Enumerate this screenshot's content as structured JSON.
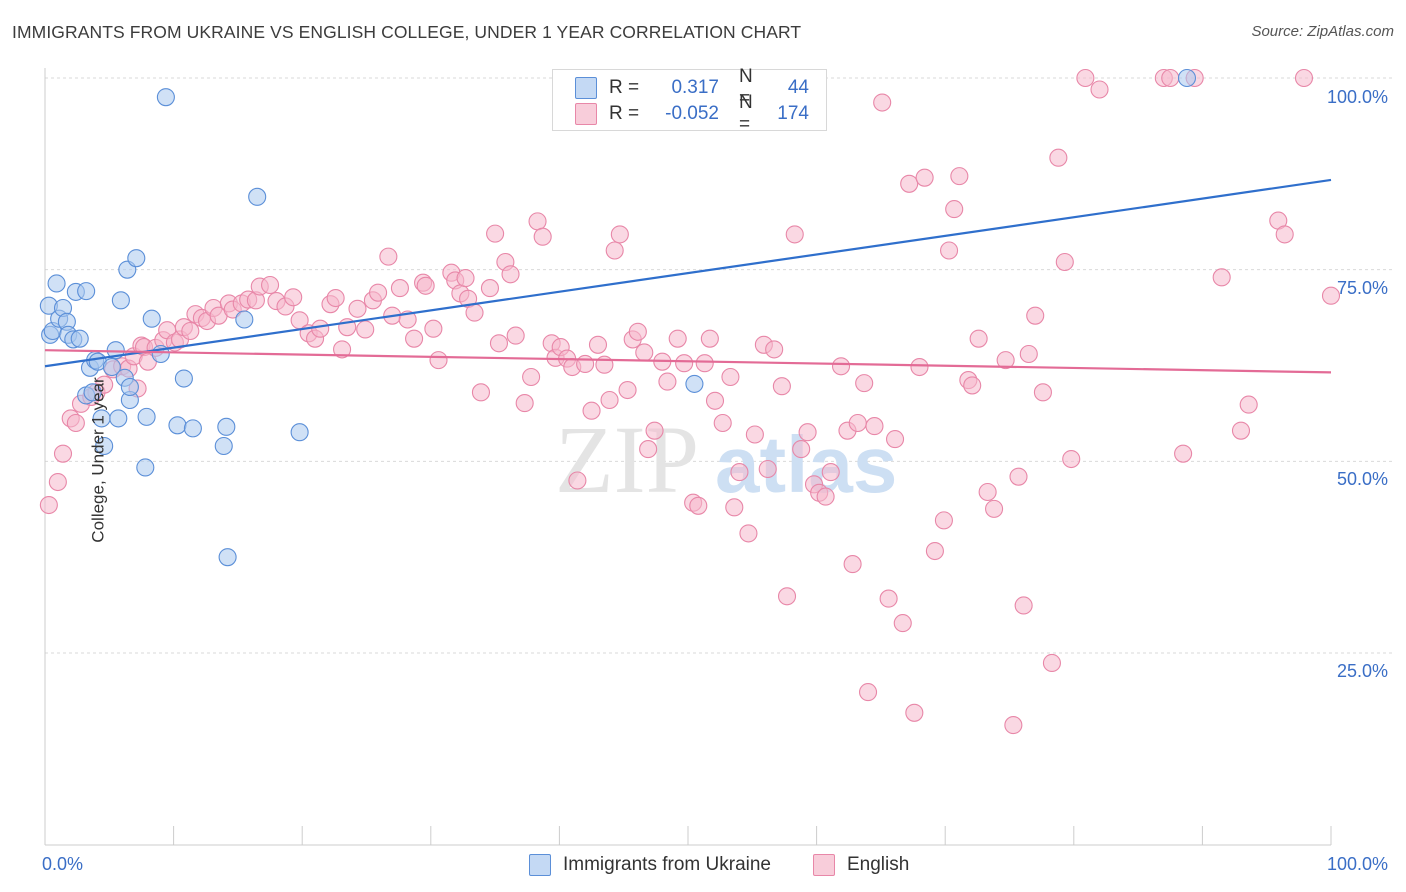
{
  "header": {
    "title": "IMMIGRANTS FROM UKRAINE VS ENGLISH COLLEGE, UNDER 1 YEAR CORRELATION CHART",
    "source": "Source: ZipAtlas.com"
  },
  "legend": {
    "series1": {
      "r_label": "R =",
      "r_value": "0.317",
      "n_label": "N =",
      "n_value": "44"
    },
    "series2": {
      "r_label": "R =",
      "r_value": "-0.052",
      "n_label": "N =",
      "n_value": "174"
    }
  },
  "watermark": {
    "zip": "ZIP",
    "atlas": "atlas"
  },
  "colors": {
    "blue_fill": "#aac8ee",
    "blue_stroke": "#5b8fd8",
    "blue_line": "#2f6fcc",
    "pink_fill": "#f5b8cc",
    "pink_stroke": "#e887a8",
    "pink_line": "#e36b96",
    "grid": "#d9d9d9",
    "axis_label": "#3a6ec6"
  },
  "chart_data": {
    "type": "scatter",
    "title": "IMMIGRANTS FROM UKRAINE VS ENGLISH COLLEGE, UNDER 1 YEAR CORRELATION CHART",
    "xlabel": "",
    "ylabel": "College, Under 1 year",
    "xlim": [
      0,
      100
    ],
    "ylim": [
      0,
      102
    ],
    "x_tick_labels": [
      "0.0%",
      "100.0%"
    ],
    "y_ticks": [
      25,
      50,
      75,
      100
    ],
    "y_tick_labels": [
      "25.0%",
      "50.0%",
      "75.0%",
      "100.0%"
    ],
    "legend_position": "top-center",
    "series": [
      {
        "name": "Immigrants from Ukraine",
        "color": "blue",
        "trend": {
          "x0": 0,
          "y0": 62.4,
          "x1": 100,
          "y1": 86.7
        },
        "points": [
          [
            0.3,
            70.3
          ],
          [
            0.4,
            66.5
          ],
          [
            0.6,
            67.0
          ],
          [
            0.9,
            73.2
          ],
          [
            1.1,
            68.6
          ],
          [
            1.4,
            70.0
          ],
          [
            1.7,
            68.2
          ],
          [
            1.8,
            66.5
          ],
          [
            2.2,
            65.9
          ],
          [
            2.4,
            72.1
          ],
          [
            2.7,
            66.0
          ],
          [
            3.2,
            72.2
          ],
          [
            3.5,
            62.2
          ],
          [
            3.2,
            58.6
          ],
          [
            3.7,
            59.0
          ],
          [
            3.9,
            63.2
          ],
          [
            4.1,
            63.0
          ],
          [
            4.4,
            55.6
          ],
          [
            4.6,
            52.0
          ],
          [
            5.2,
            62.3
          ],
          [
            5.5,
            64.5
          ],
          [
            5.7,
            55.6
          ],
          [
            5.9,
            71.0
          ],
          [
            6.2,
            60.9
          ],
          [
            6.4,
            75.0
          ],
          [
            6.6,
            58.0
          ],
          [
            6.6,
            59.7
          ],
          [
            7.1,
            76.5
          ],
          [
            7.8,
            49.2
          ],
          [
            7.9,
            55.8
          ],
          [
            8.3,
            68.6
          ],
          [
            9.0,
            64.0
          ],
          [
            9.4,
            97.5
          ],
          [
            10.3,
            54.7
          ],
          [
            10.8,
            60.8
          ],
          [
            11.5,
            54.3
          ],
          [
            13.9,
            52.0
          ],
          [
            14.1,
            54.5
          ],
          [
            14.2,
            37.5
          ],
          [
            15.5,
            68.5
          ],
          [
            16.5,
            84.5
          ],
          [
            19.8,
            53.8
          ],
          [
            50.5,
            60.1
          ],
          [
            88.8,
            100.0
          ]
        ]
      },
      {
        "name": "English",
        "color": "pink",
        "trend": {
          "x0": 0,
          "y0": 64.5,
          "x1": 100,
          "y1": 61.6
        },
        "points": [
          [
            0.3,
            44.3
          ],
          [
            1.0,
            47.3
          ],
          [
            1.4,
            51.0
          ],
          [
            2.0,
            55.6
          ],
          [
            2.4,
            55.0
          ],
          [
            2.8,
            57.5
          ],
          [
            3.6,
            58.4
          ],
          [
            4.0,
            59.0
          ],
          [
            4.6,
            60.0
          ],
          [
            5.3,
            62.0
          ],
          [
            6.0,
            62.4
          ],
          [
            6.5,
            62.1
          ],
          [
            6.9,
            63.7
          ],
          [
            7.2,
            59.5
          ],
          [
            7.5,
            65.1
          ],
          [
            7.7,
            64.9
          ],
          [
            8.0,
            63.0
          ],
          [
            8.6,
            64.8
          ],
          [
            9.2,
            65.8
          ],
          [
            9.5,
            67.1
          ],
          [
            10.1,
            65.5
          ],
          [
            10.5,
            65.9
          ],
          [
            10.8,
            67.5
          ],
          [
            11.3,
            67.0
          ],
          [
            11.7,
            69.2
          ],
          [
            12.2,
            68.7
          ],
          [
            12.6,
            68.3
          ],
          [
            13.1,
            70.0
          ],
          [
            13.5,
            69.0
          ],
          [
            14.3,
            70.6
          ],
          [
            14.6,
            69.8
          ],
          [
            15.3,
            70.6
          ],
          [
            15.8,
            71.1
          ],
          [
            16.4,
            71.0
          ],
          [
            16.7,
            72.8
          ],
          [
            17.5,
            73.0
          ],
          [
            18.0,
            70.9
          ],
          [
            18.7,
            70.2
          ],
          [
            19.3,
            71.4
          ],
          [
            19.8,
            68.4
          ],
          [
            20.5,
            66.7
          ],
          [
            21.0,
            66.0
          ],
          [
            21.4,
            67.3
          ],
          [
            22.2,
            70.5
          ],
          [
            22.6,
            71.3
          ],
          [
            23.1,
            64.6
          ],
          [
            23.5,
            67.5
          ],
          [
            24.3,
            69.9
          ],
          [
            24.9,
            67.2
          ],
          [
            25.5,
            71.0
          ],
          [
            25.9,
            72.0
          ],
          [
            26.7,
            76.7
          ],
          [
            27.0,
            69.0
          ],
          [
            27.6,
            72.6
          ],
          [
            28.2,
            68.5
          ],
          [
            28.7,
            66.0
          ],
          [
            29.4,
            73.3
          ],
          [
            29.6,
            72.9
          ],
          [
            30.2,
            67.3
          ],
          [
            30.6,
            63.2
          ],
          [
            31.6,
            74.6
          ],
          [
            31.9,
            73.6
          ],
          [
            32.3,
            71.9
          ],
          [
            32.7,
            73.9
          ],
          [
            32.9,
            71.2
          ],
          [
            33.4,
            69.4
          ],
          [
            33.9,
            59.0
          ],
          [
            34.6,
            72.6
          ],
          [
            35.0,
            79.7
          ],
          [
            35.3,
            65.4
          ],
          [
            35.8,
            76.0
          ],
          [
            36.2,
            74.4
          ],
          [
            36.6,
            66.4
          ],
          [
            37.3,
            57.6
          ],
          [
            37.8,
            61.0
          ],
          [
            38.3,
            81.3
          ],
          [
            38.7,
            79.3
          ],
          [
            39.4,
            65.4
          ],
          [
            39.7,
            63.5
          ],
          [
            40.1,
            64.9
          ],
          [
            40.6,
            63.4
          ],
          [
            41.0,
            62.3
          ],
          [
            41.4,
            47.5
          ],
          [
            42.0,
            62.7
          ],
          [
            42.5,
            56.6
          ],
          [
            43.0,
            65.2
          ],
          [
            43.5,
            62.6
          ],
          [
            43.9,
            58.0
          ],
          [
            44.3,
            77.5
          ],
          [
            44.7,
            79.6
          ],
          [
            45.3,
            59.3
          ],
          [
            45.7,
            65.9
          ],
          [
            46.1,
            66.9
          ],
          [
            46.6,
            64.2
          ],
          [
            46.9,
            51.6
          ],
          [
            47.4,
            54.0
          ],
          [
            48.0,
            63.0
          ],
          [
            48.4,
            60.4
          ],
          [
            49.2,
            66.0
          ],
          [
            49.7,
            62.8
          ],
          [
            50.4,
            44.6
          ],
          [
            50.8,
            44.2
          ],
          [
            51.3,
            62.8
          ],
          [
            51.7,
            66.0
          ],
          [
            52.1,
            57.9
          ],
          [
            52.7,
            55.0
          ],
          [
            53.3,
            61.0
          ],
          [
            53.6,
            44.0
          ],
          [
            54.0,
            48.6
          ],
          [
            54.7,
            40.6
          ],
          [
            55.2,
            53.5
          ],
          [
            55.9,
            65.2
          ],
          [
            56.2,
            49.0
          ],
          [
            56.7,
            64.6
          ],
          [
            57.3,
            59.8
          ],
          [
            57.7,
            32.4
          ],
          [
            58.3,
            79.6
          ],
          [
            58.8,
            51.6
          ],
          [
            59.3,
            53.8
          ],
          [
            59.8,
            47.0
          ],
          [
            60.2,
            45.9
          ],
          [
            60.7,
            45.4
          ],
          [
            61.1,
            48.6
          ],
          [
            61.9,
            62.4
          ],
          [
            62.4,
            54.0
          ],
          [
            62.8,
            36.6
          ],
          [
            63.2,
            55.0
          ],
          [
            63.7,
            60.2
          ],
          [
            64.0,
            19.9
          ],
          [
            64.5,
            54.6
          ],
          [
            65.1,
            96.8
          ],
          [
            65.6,
            32.1
          ],
          [
            66.1,
            52.9
          ],
          [
            66.7,
            28.9
          ],
          [
            67.2,
            86.2
          ],
          [
            67.6,
            17.2
          ],
          [
            68.0,
            62.3
          ],
          [
            68.4,
            87.0
          ],
          [
            69.2,
            38.3
          ],
          [
            69.9,
            42.3
          ],
          [
            70.3,
            77.5
          ],
          [
            70.7,
            82.9
          ],
          [
            71.1,
            87.2
          ],
          [
            71.8,
            60.6
          ],
          [
            72.1,
            59.9
          ],
          [
            72.6,
            66.0
          ],
          [
            73.3,
            46.0
          ],
          [
            73.8,
            43.8
          ],
          [
            74.7,
            63.2
          ],
          [
            75.3,
            15.6
          ],
          [
            75.7,
            48.0
          ],
          [
            76.1,
            31.2
          ],
          [
            76.5,
            64.0
          ],
          [
            77.0,
            69.0
          ],
          [
            77.6,
            59.0
          ],
          [
            78.3,
            23.7
          ],
          [
            78.8,
            89.6
          ],
          [
            79.3,
            76.0
          ],
          [
            79.8,
            50.3
          ],
          [
            80.9,
            100.0
          ],
          [
            82.0,
            98.5
          ],
          [
            87.0,
            100.0
          ],
          [
            87.5,
            100.0
          ],
          [
            88.5,
            51.0
          ],
          [
            89.4,
            100.0
          ],
          [
            91.5,
            74.0
          ],
          [
            93.0,
            54.0
          ],
          [
            93.6,
            57.4
          ],
          [
            95.9,
            81.4
          ],
          [
            96.4,
            79.6
          ],
          [
            97.9,
            100.0
          ],
          [
            100.0,
            71.6
          ]
        ]
      }
    ]
  },
  "bottom_legend": {
    "item1": "Immigrants from Ukraine",
    "item2": "English"
  }
}
